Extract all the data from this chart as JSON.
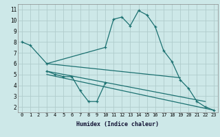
{
  "bg_color": "#cde8e8",
  "grid_color": "#b0cccc",
  "line_color": "#1a7070",
  "xlabel": "Humidex (Indice chaleur)",
  "xlim": [
    -0.5,
    23.5
  ],
  "ylim": [
    1.5,
    11.5
  ],
  "xticks": [
    0,
    1,
    2,
    3,
    4,
    5,
    6,
    7,
    8,
    9,
    10,
    11,
    12,
    13,
    14,
    15,
    16,
    17,
    18,
    19,
    20,
    21,
    22,
    23
  ],
  "yticks": [
    2,
    3,
    4,
    5,
    6,
    7,
    8,
    9,
    10,
    11
  ],
  "series": [
    {
      "x": [
        0,
        1,
        3,
        10,
        11,
        12,
        13,
        14,
        15,
        16,
        17,
        18,
        19,
        20,
        21,
        22,
        23
      ],
      "y": [
        8.0,
        7.7,
        6.0,
        7.5,
        10.1,
        10.3,
        9.5,
        10.9,
        10.5,
        9.4,
        7.2,
        6.2,
        4.5,
        3.7,
        2.5,
        2.0,
        1.7
      ],
      "marker": true
    },
    {
      "x": [
        3,
        4,
        5,
        6,
        7,
        8,
        9,
        10
      ],
      "y": [
        5.3,
        5.0,
        4.8,
        4.8,
        3.5,
        2.5,
        2.5,
        4.2
      ],
      "marker": true
    },
    {
      "x": [
        3,
        19
      ],
      "y": [
        6.0,
        4.7
      ],
      "marker": false
    },
    {
      "x": [
        3,
        22
      ],
      "y": [
        5.3,
        2.5
      ],
      "marker": false
    },
    {
      "x": [
        3,
        23
      ],
      "y": [
        5.0,
        1.7
      ],
      "marker": false
    }
  ]
}
